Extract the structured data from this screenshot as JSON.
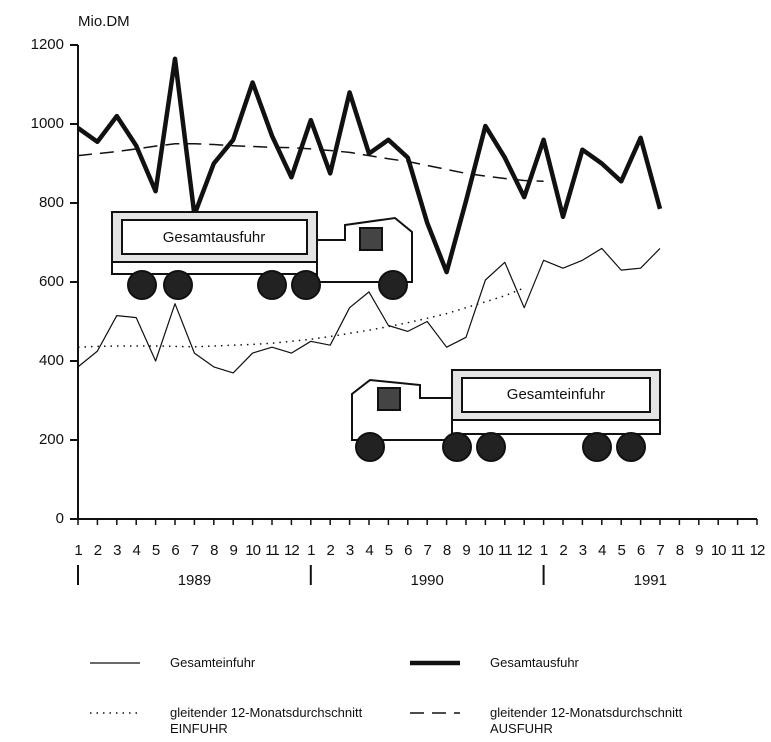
{
  "chart_data": {
    "type": "line",
    "y_label": "Mio.DM",
    "categories": [
      "1",
      "2",
      "3",
      "4",
      "5",
      "6",
      "7",
      "8",
      "9",
      "10",
      "11",
      "12",
      "1",
      "2",
      "3",
      "4",
      "5",
      "6",
      "7",
      "8",
      "9",
      "10",
      "11",
      "12",
      "1",
      "2",
      "3",
      "4",
      "5",
      "6",
      "7",
      "8",
      "9",
      "10",
      "11",
      "12"
    ],
    "years": [
      "1989",
      "1990",
      "1991"
    ],
    "ylim": [
      0,
      1200
    ],
    "yticks": [
      0,
      200,
      400,
      600,
      800,
      1000,
      1200
    ],
    "annotations": [
      "Gesamtausfuhr",
      "Gesamteinfuhr"
    ],
    "series": [
      {
        "name": "Gesamteinfuhr",
        "color": "#111111",
        "style": "solid",
        "values": [
          385,
          425,
          515,
          510,
          400,
          545,
          420,
          385,
          370,
          420,
          435,
          420,
          450,
          440,
          535,
          575,
          490,
          475,
          500,
          435,
          460,
          605,
          650,
          535,
          655,
          635,
          655,
          685,
          630,
          635,
          685,
          null,
          null,
          null,
          null,
          null
        ]
      },
      {
        "name": "Gesamtausfuhr",
        "color": "#111111",
        "style": "bold",
        "values": [
          990,
          955,
          1020,
          945,
          830,
          1165,
          770,
          900,
          960,
          1105,
          970,
          865,
          1010,
          875,
          1080,
          925,
          960,
          915,
          750,
          625,
          805,
          995,
          915,
          815,
          960,
          765,
          935,
          900,
          855,
          965,
          785,
          null,
          null,
          null,
          null,
          null
        ]
      },
      {
        "name": "gleitender 12-Monatsdurchschnitt\nEINFUHR",
        "color": "#111111",
        "style": "dotted",
        "values": [
          435,
          437,
          438,
          438,
          438,
          437,
          436,
          438,
          440,
          442,
          445,
          450,
          455,
          462,
          470,
          478,
          487,
          497,
          508,
          520,
          535,
          550,
          565,
          585,
          null,
          null,
          null,
          null,
          null,
          null,
          null,
          null,
          null,
          null,
          null,
          null
        ]
      },
      {
        "name": "gleitender 12-Monatsdurchschnitt\nAUSFUHR",
        "color": "#111111",
        "style": "dashed",
        "values": [
          920,
          925,
          930,
          937,
          944,
          950,
          950,
          948,
          945,
          943,
          941,
          940,
          937,
          933,
          928,
          920,
          912,
          905,
          895,
          885,
          875,
          868,
          862,
          857,
          855,
          null,
          null,
          null,
          null,
          null,
          null,
          null,
          null,
          null,
          null,
          null
        ]
      }
    ]
  }
}
